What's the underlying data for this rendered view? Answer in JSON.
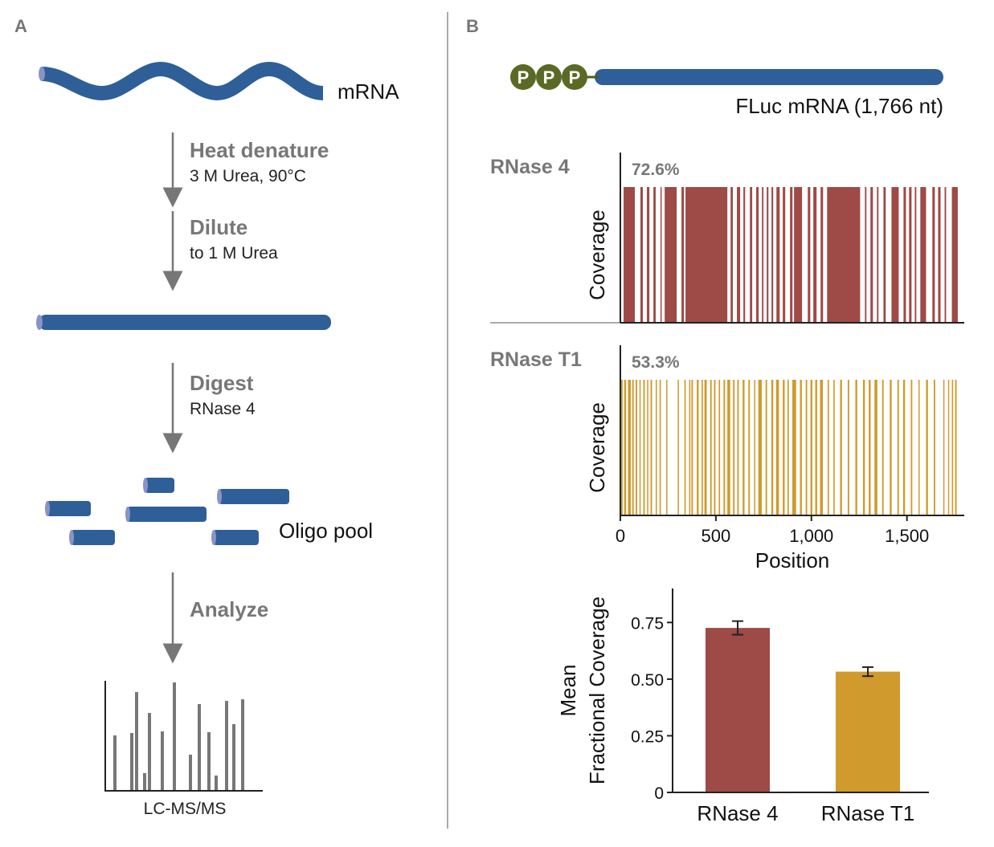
{
  "panel_a": {
    "label": "A",
    "start_label": "mRNA",
    "steps": [
      {
        "title": "Heat denature",
        "detail": "3 M Urea, 90°C"
      },
      {
        "title": "Dilute",
        "detail": "to 1 M Urea"
      },
      {
        "title": "Digest",
        "detail": "RNase 4"
      },
      {
        "title": "Analyze"
      }
    ],
    "pool_label": "Oligo pool",
    "spectrum_label": "LC-MS/MS"
  },
  "panel_b": {
    "label": "B",
    "caps": [
      "P",
      "P",
      "P"
    ],
    "construct_label": "FLuc mRNA (1,766 nt)"
  },
  "chart_data": [
    {
      "type": "barcode",
      "title": "RNase 4",
      "annotation": "72.6%",
      "ylabel": "Coverage",
      "color": "#9e4a47",
      "xlim": [
        0,
        1800
      ],
      "segments": [
        [
          17,
          76
        ],
        [
          105,
          118
        ],
        [
          139,
          152
        ],
        [
          173,
          185
        ],
        [
          210,
          215
        ],
        [
          232,
          295
        ],
        [
          320,
          333
        ],
        [
          341,
          560
        ],
        [
          577,
          589
        ],
        [
          610,
          627
        ],
        [
          644,
          653
        ],
        [
          678,
          690
        ],
        [
          711,
          724
        ],
        [
          741,
          749
        ],
        [
          766,
          775
        ],
        [
          791,
          800
        ],
        [
          817,
          834
        ],
        [
          850,
          863
        ],
        [
          888,
          901
        ],
        [
          909,
          951
        ],
        [
          981,
          994
        ],
        [
          1010,
          1027
        ],
        [
          1048,
          1061
        ],
        [
          1082,
          1255
        ],
        [
          1280,
          1288
        ],
        [
          1309,
          1322
        ],
        [
          1343,
          1351
        ],
        [
          1377,
          1389
        ],
        [
          1419,
          1457
        ],
        [
          1482,
          1495
        ],
        [
          1511,
          1524
        ],
        [
          1541,
          1549
        ],
        [
          1570,
          1600
        ],
        [
          1633,
          1646
        ],
        [
          1663,
          1676
        ],
        [
          1697,
          1705
        ],
        [
          1735,
          1766
        ]
      ]
    },
    {
      "type": "barcode",
      "title": "RNase T1",
      "annotation": "53.3%",
      "ylabel": "Coverage",
      "xlabel": "Position",
      "color": "#d09a2c",
      "xlim": [
        0,
        1800
      ],
      "xticks": [
        0,
        500,
        {
          "value": 1000,
          "label": "1,000"
        },
        {
          "value": 1500,
          "label": "1,500"
        }
      ],
      "segments": [
        [
          0,
          12
        ],
        [
          20,
          30
        ],
        [
          40,
          55
        ],
        [
          62,
          70
        ],
        [
          80,
          88
        ],
        [
          100,
          106
        ],
        [
          120,
          128
        ],
        [
          140,
          146
        ],
        [
          158,
          166
        ],
        [
          185,
          190
        ],
        [
          205,
          212
        ],
        [
          240,
          246
        ],
        [
          300,
          306
        ],
        [
          335,
          342
        ],
        [
          360,
          366
        ],
        [
          372,
          380
        ],
        [
          400,
          410
        ],
        [
          425,
          432
        ],
        [
          440,
          452
        ],
        [
          470,
          478
        ],
        [
          490,
          498
        ],
        [
          515,
          522
        ],
        [
          540,
          548
        ],
        [
          560,
          575
        ],
        [
          590,
          598
        ],
        [
          612,
          620
        ],
        [
          640,
          650
        ],
        [
          670,
          678
        ],
        [
          700,
          706
        ],
        [
          722,
          740
        ],
        [
          760,
          768
        ],
        [
          790,
          800
        ],
        [
          815,
          830
        ],
        [
          850,
          860
        ],
        [
          875,
          882
        ],
        [
          900,
          920
        ],
        [
          940,
          950
        ],
        [
          970,
          978
        ],
        [
          995,
          1005
        ],
        [
          1020,
          1030
        ],
        [
          1045,
          1060
        ],
        [
          1085,
          1092
        ],
        [
          1115,
          1122
        ],
        [
          1150,
          1160
        ],
        [
          1190,
          1198
        ],
        [
          1230,
          1240
        ],
        [
          1270,
          1280
        ],
        [
          1300,
          1310
        ],
        [
          1330,
          1345
        ],
        [
          1370,
          1378
        ],
        [
          1410,
          1420
        ],
        [
          1450,
          1458
        ],
        [
          1480,
          1490
        ],
        [
          1520,
          1528
        ],
        [
          1560,
          1566
        ],
        [
          1600,
          1610
        ],
        [
          1640,
          1648
        ],
        [
          1690,
          1696
        ],
        [
          1715,
          1720
        ],
        [
          1735,
          1742
        ],
        [
          1752,
          1760
        ]
      ]
    },
    {
      "type": "bar",
      "ylabel": [
        "Mean",
        "Fractional Coverage"
      ],
      "categories": [
        "RNase 4",
        "RNase T1"
      ],
      "values": [
        0.726,
        0.533
      ],
      "errors": [
        0.03,
        0.02
      ],
      "colors": [
        "#9e4a47",
        "#d09a2c"
      ],
      "ylim": [
        0,
        0.9
      ],
      "yticks": [
        0,
        {
          "value": 0.25,
          "label": "0.25"
        },
        {
          "value": 0.5,
          "label": "0.50"
        },
        {
          "value": 0.75,
          "label": "0.75"
        }
      ]
    }
  ]
}
